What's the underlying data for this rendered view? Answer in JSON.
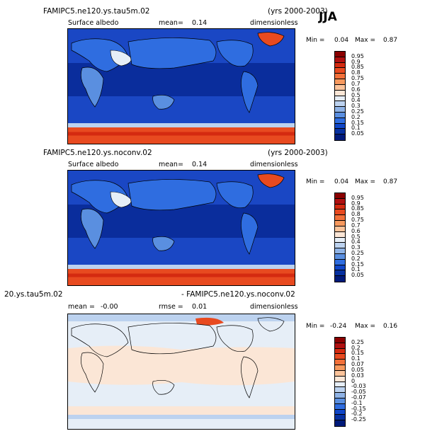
{
  "season": "JJA",
  "panels": [
    {
      "title_left": "FAMIPC5.ne120.ys.tau5m.02",
      "title_right": "(yrs 2000-2003)",
      "variable": "Surface albedo",
      "mean_label": "mean=",
      "mean_value": "0.14",
      "units": "dimensionless",
      "min_label": "Min =",
      "min_value": "0.04",
      "max_label": "Max =",
      "max_value": "0.87",
      "colorbar_labels": [
        "0.95",
        "0.9",
        "0.85",
        "0.8",
        "0.75",
        "0.7",
        "0.6",
        "0.5",
        "0.4",
        "0.3",
        "0.25",
        "0.2",
        "0.15",
        "0.1",
        "0.05"
      ],
      "colorbar_colors": [
        "#8b0000",
        "#b01010",
        "#d42a10",
        "#e84a20",
        "#f2703a",
        "#f7995e",
        "#fbc39a",
        "#fbe6d6",
        "#e6eef7",
        "#bcd2ef",
        "#8fb3e6",
        "#5a8fe0",
        "#2f6de0",
        "#1046c8",
        "#0630a0",
        "#001a7a"
      ]
    },
    {
      "title_left": "FAMIPC5.ne120.ys.noconv.02",
      "title_right": "(yrs 2000-2003)",
      "variable": "Surface albedo",
      "mean_label": "mean=",
      "mean_value": "0.14",
      "units": "dimensionless",
      "min_label": "Min =",
      "min_value": "0.04",
      "max_label": "Max =",
      "max_value": "0.87",
      "colorbar_labels": [
        "0.95",
        "0.9",
        "0.85",
        "0.8",
        "0.75",
        "0.7",
        "0.6",
        "0.5",
        "0.4",
        "0.3",
        "0.25",
        "0.2",
        "0.15",
        "0.1",
        "0.05"
      ],
      "colorbar_colors": [
        "#8b0000",
        "#b01010",
        "#d42a10",
        "#e84a20",
        "#f2703a",
        "#f7995e",
        "#fbc39a",
        "#fbe6d6",
        "#e6eef7",
        "#bcd2ef",
        "#8fb3e6",
        "#5a8fe0",
        "#2f6de0",
        "#1046c8",
        "#0630a0",
        "#001a7a"
      ]
    },
    {
      "title_left": "20.ys.tau5m.02",
      "title_right": "- FAMIPC5.ne120.ys.noconv.02",
      "mean_label": "mean =",
      "mean_value": "-0.00",
      "rmse_label": "rmse =",
      "rmse_value": "0.01",
      "units": "dimensionless",
      "min_label": "Min =",
      "min_value": "-0.24",
      "max_label": "Max =",
      "max_value": "0.16",
      "colorbar_labels": [
        "0.25",
        "0.2",
        "0.15",
        "0.1",
        "0.07",
        "0.05",
        "0.03",
        "0",
        "-0.03",
        "-0.05",
        "-0.07",
        "-0.1",
        "-0.15",
        "-0.2",
        "-0.25"
      ],
      "colorbar_colors": [
        "#8b0000",
        "#b01010",
        "#d42a10",
        "#e84a20",
        "#f2703a",
        "#f7995e",
        "#fbc39a",
        "#fbe6d6",
        "#e6eef7",
        "#bcd2ef",
        "#8fb3e6",
        "#5a8fe0",
        "#2f6de0",
        "#1046c8",
        "#0630a0",
        "#001a7a"
      ]
    }
  ]
}
